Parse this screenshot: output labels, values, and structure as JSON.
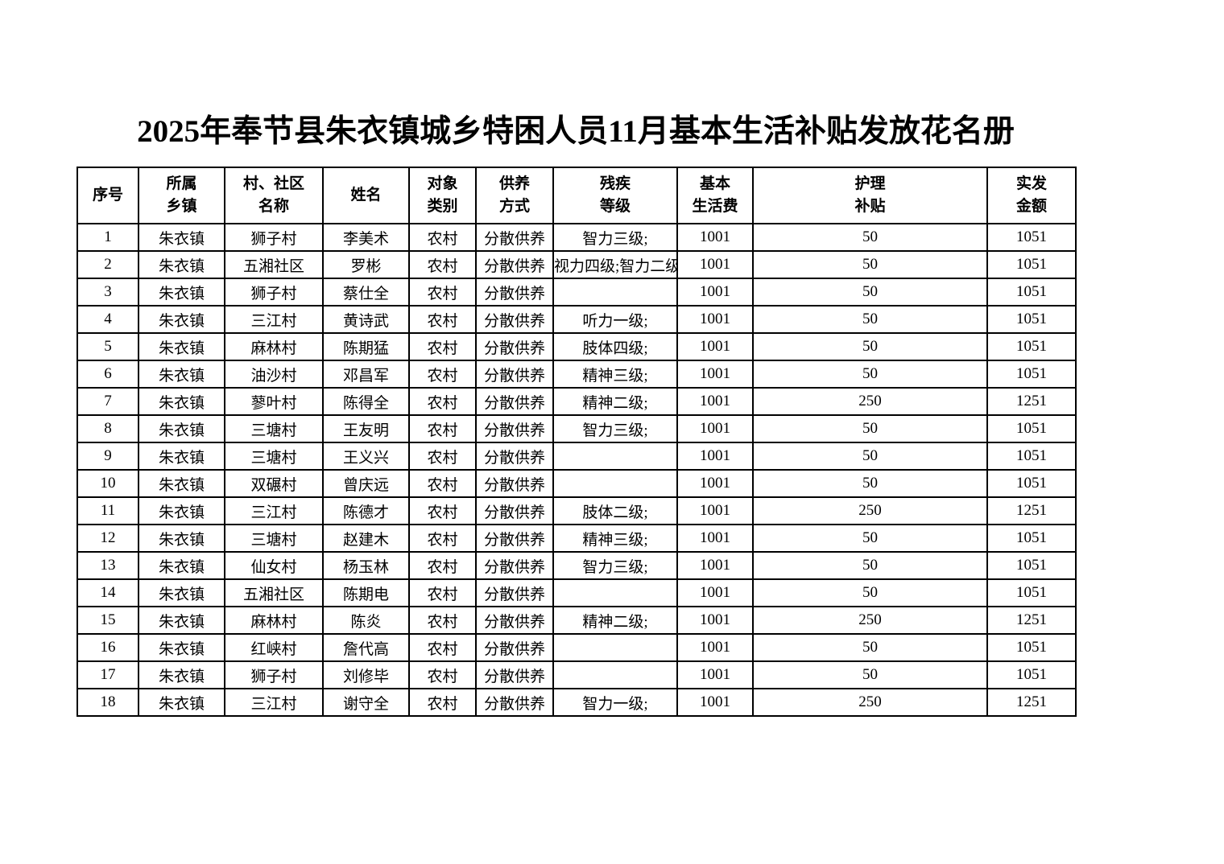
{
  "page": {
    "title": "2025年奉节县朱衣镇城乡特困人员11月基本生活补贴发放花名册"
  },
  "table": {
    "columns": [
      {
        "id": "serial",
        "lines": [
          "序号"
        ]
      },
      {
        "id": "township",
        "lines": [
          "所属",
          "乡镇"
        ]
      },
      {
        "id": "village",
        "lines": [
          "村、社区",
          "名称"
        ]
      },
      {
        "id": "name",
        "lines": [
          "姓名"
        ]
      },
      {
        "id": "category",
        "lines": [
          "对象",
          "类别"
        ]
      },
      {
        "id": "support",
        "lines": [
          "供养",
          "方式"
        ]
      },
      {
        "id": "disability",
        "lines": [
          "残疾",
          "等级"
        ]
      },
      {
        "id": "basic-fee",
        "lines": [
          "基本",
          "生活费"
        ]
      },
      {
        "id": "nursing",
        "lines": [
          "护理",
          "补贴"
        ]
      },
      {
        "id": "actual",
        "lines": [
          "实发",
          "金额"
        ]
      }
    ],
    "rows": [
      [
        "1",
        "朱衣镇",
        "狮子村",
        "李美术",
        "农村",
        "分散供养",
        "智力三级;",
        "1001",
        "50",
        "1051"
      ],
      [
        "2",
        "朱衣镇",
        "五湘社区",
        "罗彬",
        "农村",
        "分散供养",
        "视力四级;智力二级",
        "1001",
        "50",
        "1051"
      ],
      [
        "3",
        "朱衣镇",
        "狮子村",
        "蔡仕全",
        "农村",
        "分散供养",
        "",
        "1001",
        "50",
        "1051"
      ],
      [
        "4",
        "朱衣镇",
        "三江村",
        "黄诗武",
        "农村",
        "分散供养",
        "听力一级;",
        "1001",
        "50",
        "1051"
      ],
      [
        "5",
        "朱衣镇",
        "麻林村",
        "陈期猛",
        "农村",
        "分散供养",
        "肢体四级;",
        "1001",
        "50",
        "1051"
      ],
      [
        "6",
        "朱衣镇",
        "油沙村",
        "邓昌军",
        "农村",
        "分散供养",
        "精神三级;",
        "1001",
        "50",
        "1051"
      ],
      [
        "7",
        "朱衣镇",
        "蓼叶村",
        "陈得全",
        "农村",
        "分散供养",
        "精神二级;",
        "1001",
        "250",
        "1251"
      ],
      [
        "8",
        "朱衣镇",
        "三塘村",
        "王友明",
        "农村",
        "分散供养",
        "智力三级;",
        "1001",
        "50",
        "1051"
      ],
      [
        "9",
        "朱衣镇",
        "三塘村",
        "王义兴",
        "农村",
        "分散供养",
        "",
        "1001",
        "50",
        "1051"
      ],
      [
        "10",
        "朱衣镇",
        "双碾村",
        "曾庆远",
        "农村",
        "分散供养",
        "",
        "1001",
        "50",
        "1051"
      ],
      [
        "11",
        "朱衣镇",
        "三江村",
        "陈德才",
        "农村",
        "分散供养",
        "肢体二级;",
        "1001",
        "250",
        "1251"
      ],
      [
        "12",
        "朱衣镇",
        "三塘村",
        "赵建木",
        "农村",
        "分散供养",
        "精神三级;",
        "1001",
        "50",
        "1051"
      ],
      [
        "13",
        "朱衣镇",
        "仙女村",
        "杨玉林",
        "农村",
        "分散供养",
        "智力三级;",
        "1001",
        "50",
        "1051"
      ],
      [
        "14",
        "朱衣镇",
        "五湘社区",
        "陈期电",
        "农村",
        "分散供养",
        "",
        "1001",
        "50",
        "1051"
      ],
      [
        "15",
        "朱衣镇",
        "麻林村",
        "陈炎",
        "农村",
        "分散供养",
        "精神二级;",
        "1001",
        "250",
        "1251"
      ],
      [
        "16",
        "朱衣镇",
        "红峡村",
        "詹代高",
        "农村",
        "分散供养",
        "",
        "1001",
        "50",
        "1051"
      ],
      [
        "17",
        "朱衣镇",
        "狮子村",
        "刘修毕",
        "农村",
        "分散供养",
        "",
        "1001",
        "50",
        "1051"
      ],
      [
        "18",
        "朱衣镇",
        "三江村",
        "谢守全",
        "农村",
        "分散供养",
        "智力一级;",
        "1001",
        "250",
        "1251"
      ]
    ]
  }
}
